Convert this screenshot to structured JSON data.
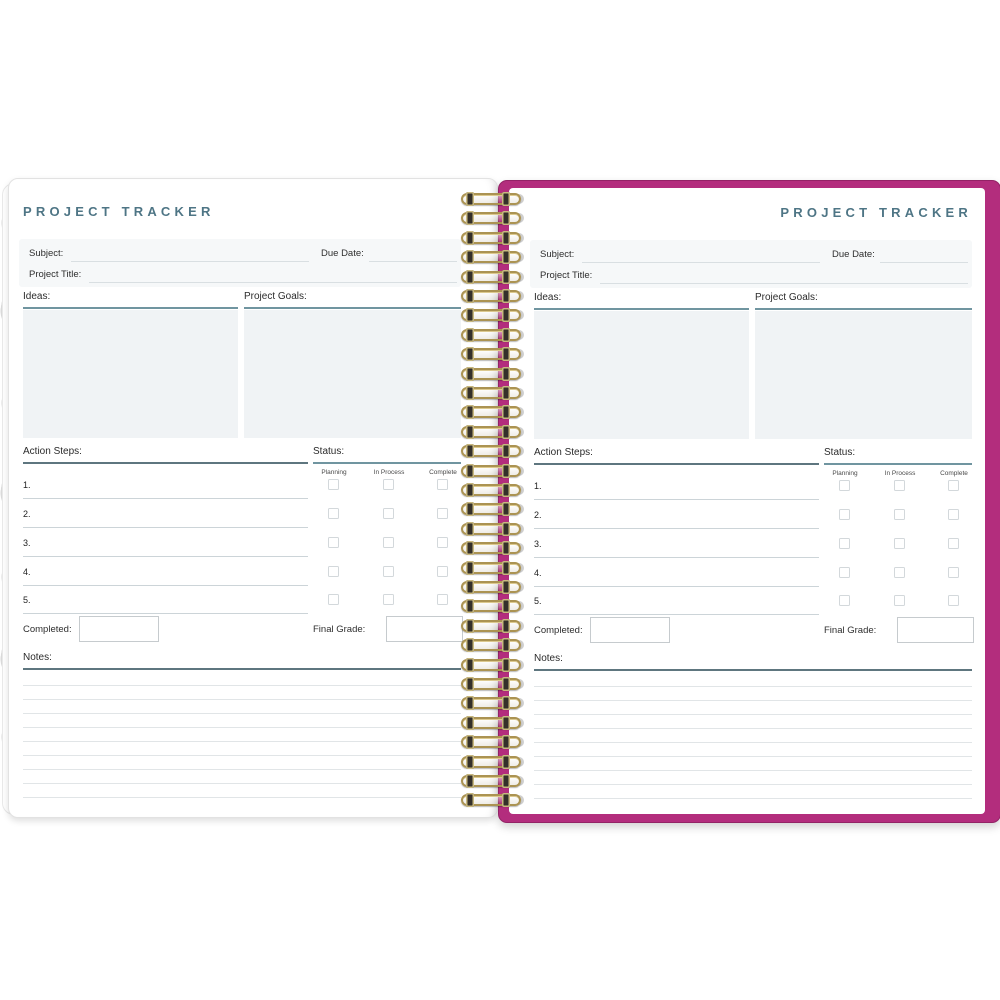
{
  "page": {
    "title": "PROJECT TRACKER",
    "fields": {
      "subject_label": "Subject:",
      "due_date_label": "Due Date:",
      "project_title_label": "Project Title:"
    },
    "ideas_label": "Ideas:",
    "project_goals_label": "Project Goals:",
    "action_steps_label": "Action Steps:",
    "status_label": "Status:",
    "status_columns": [
      "Planning",
      "In Process",
      "Complete"
    ],
    "action_step_numbers": [
      "1.",
      "2.",
      "3.",
      "4.",
      "5."
    ],
    "completed_label": "Completed:",
    "final_grade_label": "Final Grade:",
    "notes_label": "Notes:"
  },
  "colors": {
    "title_teal": "#4e7585",
    "rule_teal": "#7095a0",
    "rule_dark": "#5e767f",
    "panel_fill": "#f0f3f5",
    "cover_magenta": "#b32d7d",
    "spiral_gold": "#ab9352"
  }
}
